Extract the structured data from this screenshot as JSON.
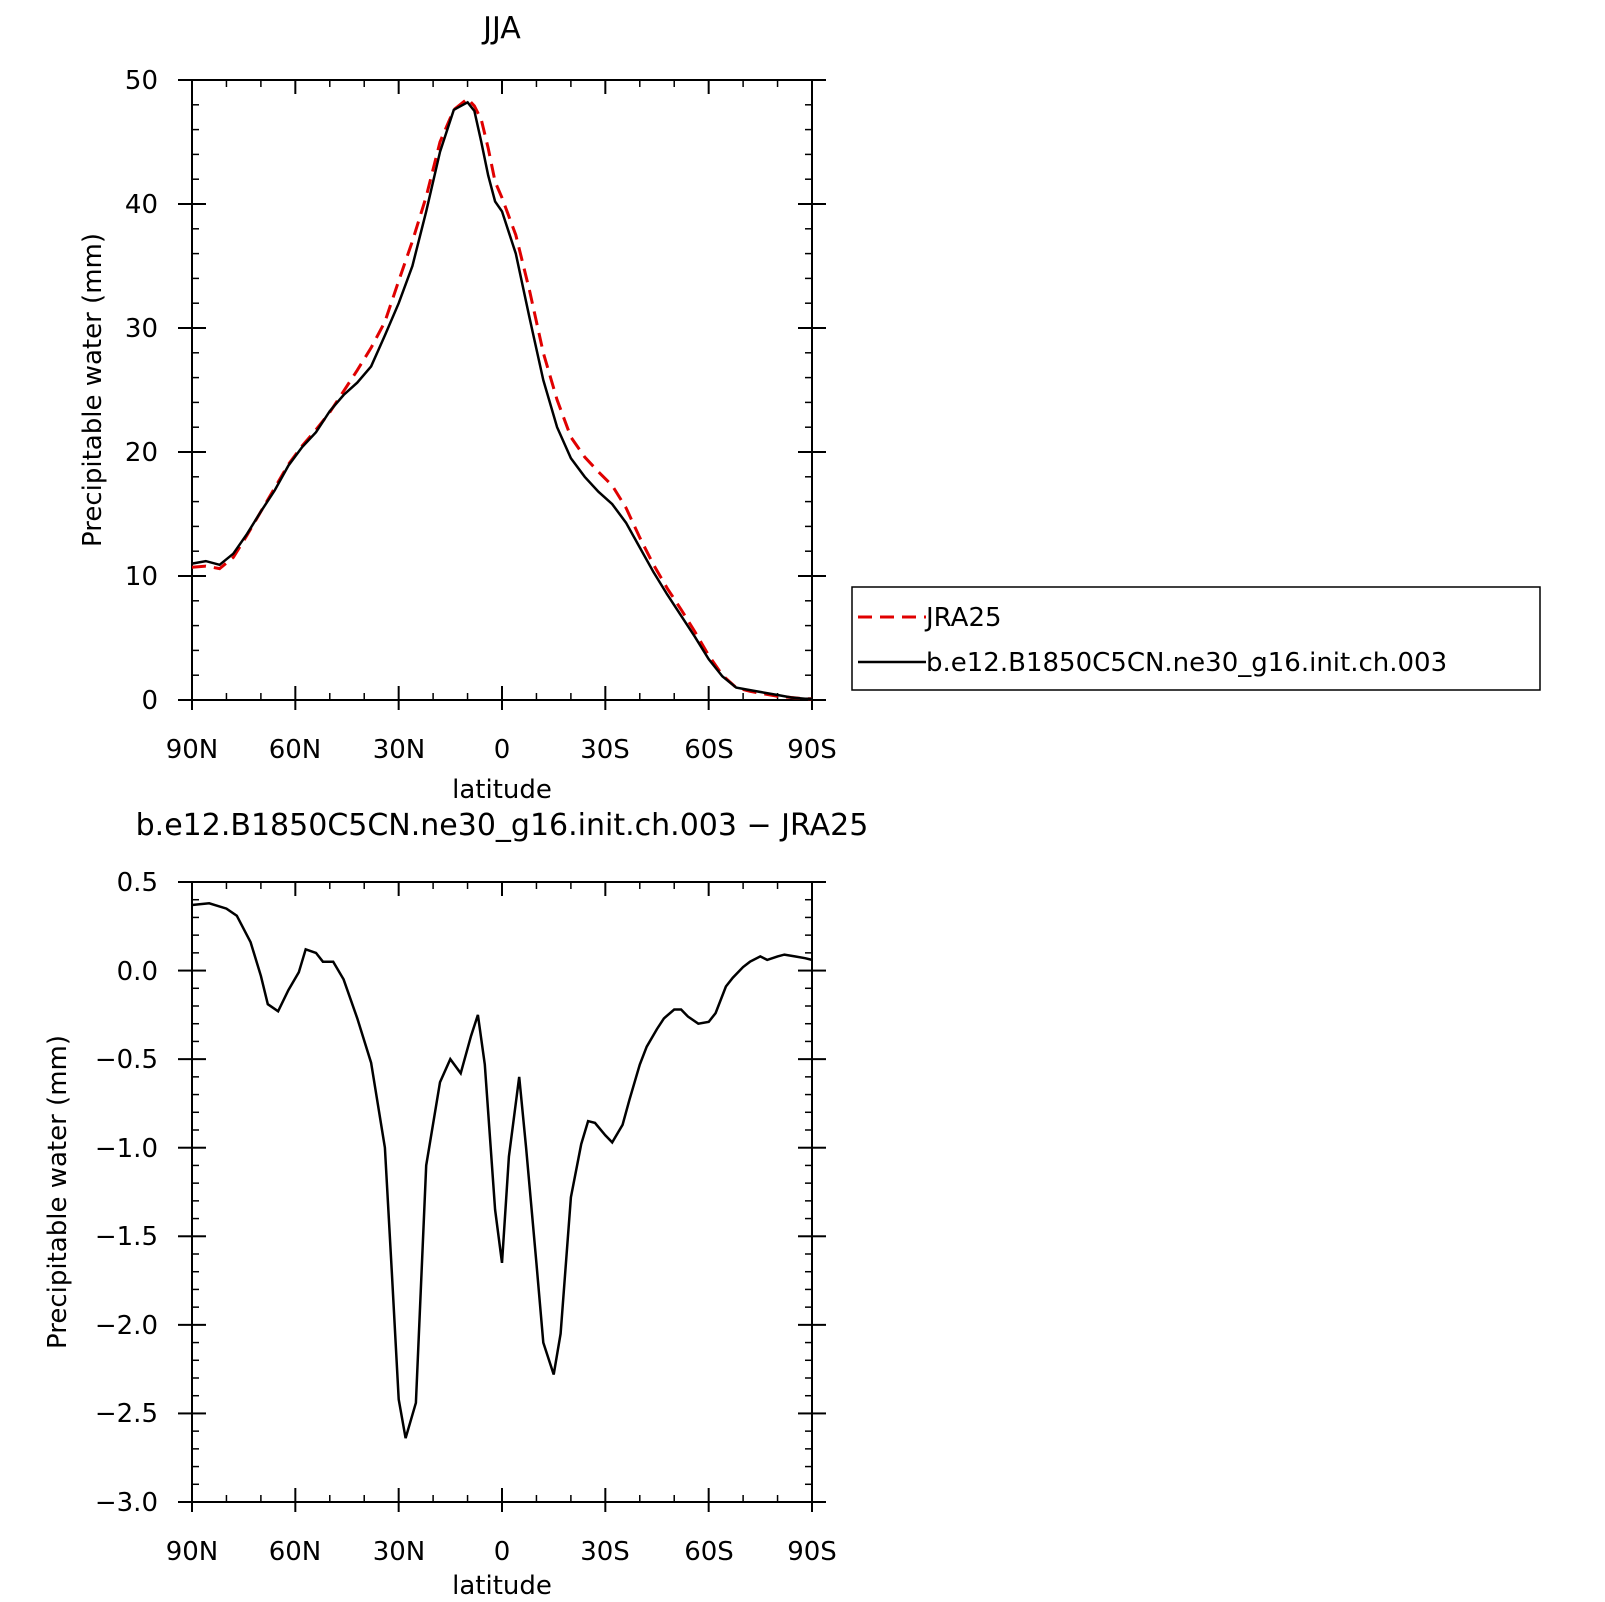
{
  "colors": {
    "jra25": "#e00000",
    "model": "#000000",
    "axes": "#000000"
  },
  "chart_data": [
    {
      "type": "line",
      "title": "JJA",
      "xlabel": "latitude",
      "ylabel": "Precipitable water (mm)",
      "xlim": [
        90,
        -90
      ],
      "ylim": [
        0,
        50
      ],
      "xticks": [
        90,
        60,
        30,
        0,
        -30,
        -60,
        -90
      ],
      "xtick_labels": [
        "90N",
        "60N",
        "30N",
        "0",
        "30S",
        "60S",
        "90S"
      ],
      "yticks": [
        0,
        10,
        20,
        30,
        40,
        50
      ],
      "ytick_labels": [
        "0",
        "10",
        "20",
        "30",
        "40",
        "50"
      ],
      "grid": false,
      "legend": {
        "placement": "right",
        "entries": [
          "JRA25",
          "b.e12.B1850C5CN.ne30_g16.init.ch.003"
        ]
      },
      "series": [
        {
          "name": "JRA25",
          "style": "dashed",
          "color": "#e00000",
          "x": [
            90,
            86,
            82,
            78,
            74,
            70,
            66,
            62,
            58,
            54,
            50,
            46,
            42,
            38,
            34,
            30,
            26,
            22,
            18,
            14,
            10,
            8,
            6,
            4,
            2,
            0,
            -4,
            -8,
            -12,
            -16,
            -20,
            -24,
            -28,
            -32,
            -36,
            -40,
            -44,
            -48,
            -52,
            -56,
            -60,
            -64,
            -68,
            -72,
            -76,
            -80,
            -84,
            -88,
            -90
          ],
          "values": [
            10.7,
            10.8,
            10.6,
            11.5,
            13.3,
            15.2,
            17.1,
            19.0,
            20.5,
            21.8,
            23.2,
            24.9,
            26.6,
            28.4,
            30.5,
            33.8,
            37.0,
            40.6,
            45.0,
            47.6,
            48.5,
            47.9,
            46.8,
            44.5,
            41.8,
            40.5,
            37.5,
            33.0,
            28.0,
            24.2,
            21.2,
            19.6,
            18.4,
            17.3,
            15.5,
            13.1,
            10.9,
            9.0,
            7.3,
            5.5,
            3.6,
            2.0,
            1.0,
            0.7,
            0.5,
            0.3,
            0.2,
            0.1,
            0.1
          ]
        },
        {
          "name": "b.e12.B1850C5CN.ne30_g16.init.ch.003",
          "style": "solid",
          "color": "#000000",
          "x": [
            90,
            86,
            82,
            78,
            74,
            70,
            66,
            62,
            58,
            54,
            50,
            46,
            42,
            38,
            34,
            30,
            26,
            22,
            18,
            14,
            10,
            8,
            6,
            4,
            2,
            0,
            -4,
            -8,
            -12,
            -16,
            -20,
            -24,
            -28,
            -32,
            -36,
            -40,
            -44,
            -48,
            -52,
            -56,
            -60,
            -64,
            -68,
            -72,
            -76,
            -80,
            -84,
            -88,
            -90
          ],
          "values": [
            11.0,
            11.2,
            10.9,
            11.8,
            13.4,
            15.2,
            16.9,
            18.9,
            20.4,
            21.6,
            23.3,
            24.6,
            25.6,
            26.9,
            29.4,
            32.0,
            35.0,
            39.4,
            44.2,
            47.6,
            48.2,
            47.5,
            45.0,
            42.3,
            40.2,
            39.4,
            36.0,
            30.8,
            25.8,
            22.0,
            19.5,
            18.0,
            16.8,
            15.8,
            14.3,
            12.3,
            10.3,
            8.5,
            6.8,
            5.1,
            3.3,
            1.9,
            1.0,
            0.8,
            0.6,
            0.4,
            0.2,
            0.1,
            0.1
          ]
        }
      ]
    },
    {
      "type": "line",
      "title": "b.e12.B1850C5CN.ne30_g16.init.ch.003 − JRA25",
      "xlabel": "latitude",
      "ylabel": "Precipitable water (mm)",
      "xlim": [
        90,
        -90
      ],
      "ylim": [
        -3.0,
        0.5
      ],
      "xticks": [
        90,
        60,
        30,
        0,
        -30,
        -60,
        -90
      ],
      "xtick_labels": [
        "90N",
        "60N",
        "30N",
        "0",
        "30S",
        "60S",
        "90S"
      ],
      "yticks": [
        0.5,
        0.0,
        -0.5,
        -1.0,
        -1.5,
        -2.0,
        -2.5,
        -3.0
      ],
      "ytick_labels": [
        "0.5",
        "0.0",
        "−0.5",
        "−1.0",
        "−1.5",
        "−2.0",
        "−2.5",
        "−3.0"
      ],
      "grid": false,
      "series": [
        {
          "style": "solid",
          "color": "#000000",
          "x": [
            90,
            85,
            80,
            77,
            73,
            70,
            68,
            65,
            62,
            59,
            57,
            54,
            52,
            49,
            46,
            42,
            38,
            34,
            32,
            30,
            28,
            25,
            22,
            18,
            15,
            12,
            9,
            7,
            5,
            2,
            0,
            -2,
            -5,
            -7,
            -10,
            -12,
            -15,
            -17,
            -20,
            -23,
            -25,
            -27,
            -30,
            -32,
            -35,
            -37,
            -40,
            -42,
            -45,
            -47,
            -50,
            -52,
            -54,
            -57,
            -60,
            -62,
            -65,
            -67,
            -70,
            -72,
            -75,
            -77,
            -80,
            -82,
            -85,
            -88,
            -90
          ],
          "values": [
            0.37,
            0.38,
            0.35,
            0.31,
            0.16,
            -0.03,
            -0.19,
            -0.23,
            -0.11,
            -0.01,
            0.12,
            0.1,
            0.05,
            0.05,
            -0.05,
            -0.27,
            -0.52,
            -1.0,
            -1.7,
            -2.42,
            -2.64,
            -2.44,
            -1.1,
            -0.63,
            -0.5,
            -0.58,
            -0.37,
            -0.25,
            -0.53,
            -1.35,
            -1.65,
            -1.05,
            -0.6,
            -1.0,
            -1.65,
            -2.1,
            -2.28,
            -2.05,
            -1.28,
            -0.98,
            -0.85,
            -0.86,
            -0.93,
            -0.97,
            -0.87,
            -0.73,
            -0.53,
            -0.43,
            -0.33,
            -0.27,
            -0.22,
            -0.22,
            -0.26,
            -0.3,
            -0.29,
            -0.24,
            -0.09,
            -0.04,
            0.02,
            0.05,
            0.08,
            0.06,
            0.08,
            0.09,
            0.08,
            0.07,
            0.06
          ]
        }
      ]
    }
  ]
}
